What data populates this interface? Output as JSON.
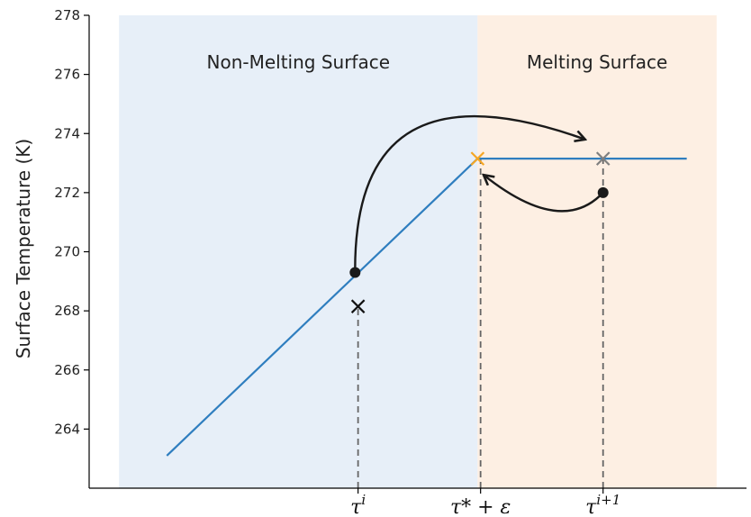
{
  "chart_data": {
    "type": "line",
    "title": "",
    "xlabel": "",
    "ylabel": "Surface Temperature (K)",
    "ylim": [
      262.0,
      278.0
    ],
    "xlim": [
      -1.0,
      10.0
    ],
    "yticks": [
      264,
      266,
      268,
      270,
      272,
      274,
      276,
      278
    ],
    "xticks": [
      {
        "x": 3.5,
        "base": "τ",
        "sup": "i"
      },
      {
        "x": 5.55,
        "base": "τ* + ε",
        "sup": ""
      },
      {
        "x": 7.6,
        "base": "τ",
        "sup": "i+1"
      }
    ],
    "regions": [
      {
        "label": "Non-Melting Surface",
        "x0": -0.5,
        "x1": 5.5,
        "color": "#e7eff8"
      },
      {
        "label": "Melting Surface",
        "x0": 5.5,
        "x1": 9.5,
        "color": "#fdefe3"
      }
    ],
    "series": [
      {
        "color": "#2f7ebf",
        "x": [
          0.3,
          5.5,
          9.0
        ],
        "y": [
          263.1,
          273.15,
          273.15
        ]
      }
    ],
    "markers": [
      {
        "type": "x",
        "x": 3.5,
        "y": 268.15,
        "color": "#111111"
      },
      {
        "type": "x",
        "x": 5.5,
        "y": 273.15,
        "color": "#f5a623"
      },
      {
        "type": "x",
        "x": 7.6,
        "y": 273.15,
        "color": "#7f7f7f"
      },
      {
        "type": "dot",
        "x": 3.45,
        "y": 269.3,
        "color": "#1a1a1a"
      },
      {
        "type": "dot",
        "x": 7.6,
        "y": 272.0,
        "color": "#1a1a1a"
      }
    ],
    "vlines": [
      {
        "x": 3.5,
        "y_top": 268.15
      },
      {
        "x": 5.55,
        "y_top": 273.15
      },
      {
        "x": 7.6,
        "y_top": 273.15
      }
    ],
    "arrows": [
      {
        "from": [
          3.45,
          269.4
        ],
        "control": [
          3.45,
          276.6
        ],
        "to": [
          7.3,
          273.8
        ]
      },
      {
        "from": [
          7.6,
          272.0
        ],
        "control": [
          6.9,
          270.5
        ],
        "to": [
          5.6,
          272.6
        ]
      }
    ]
  }
}
